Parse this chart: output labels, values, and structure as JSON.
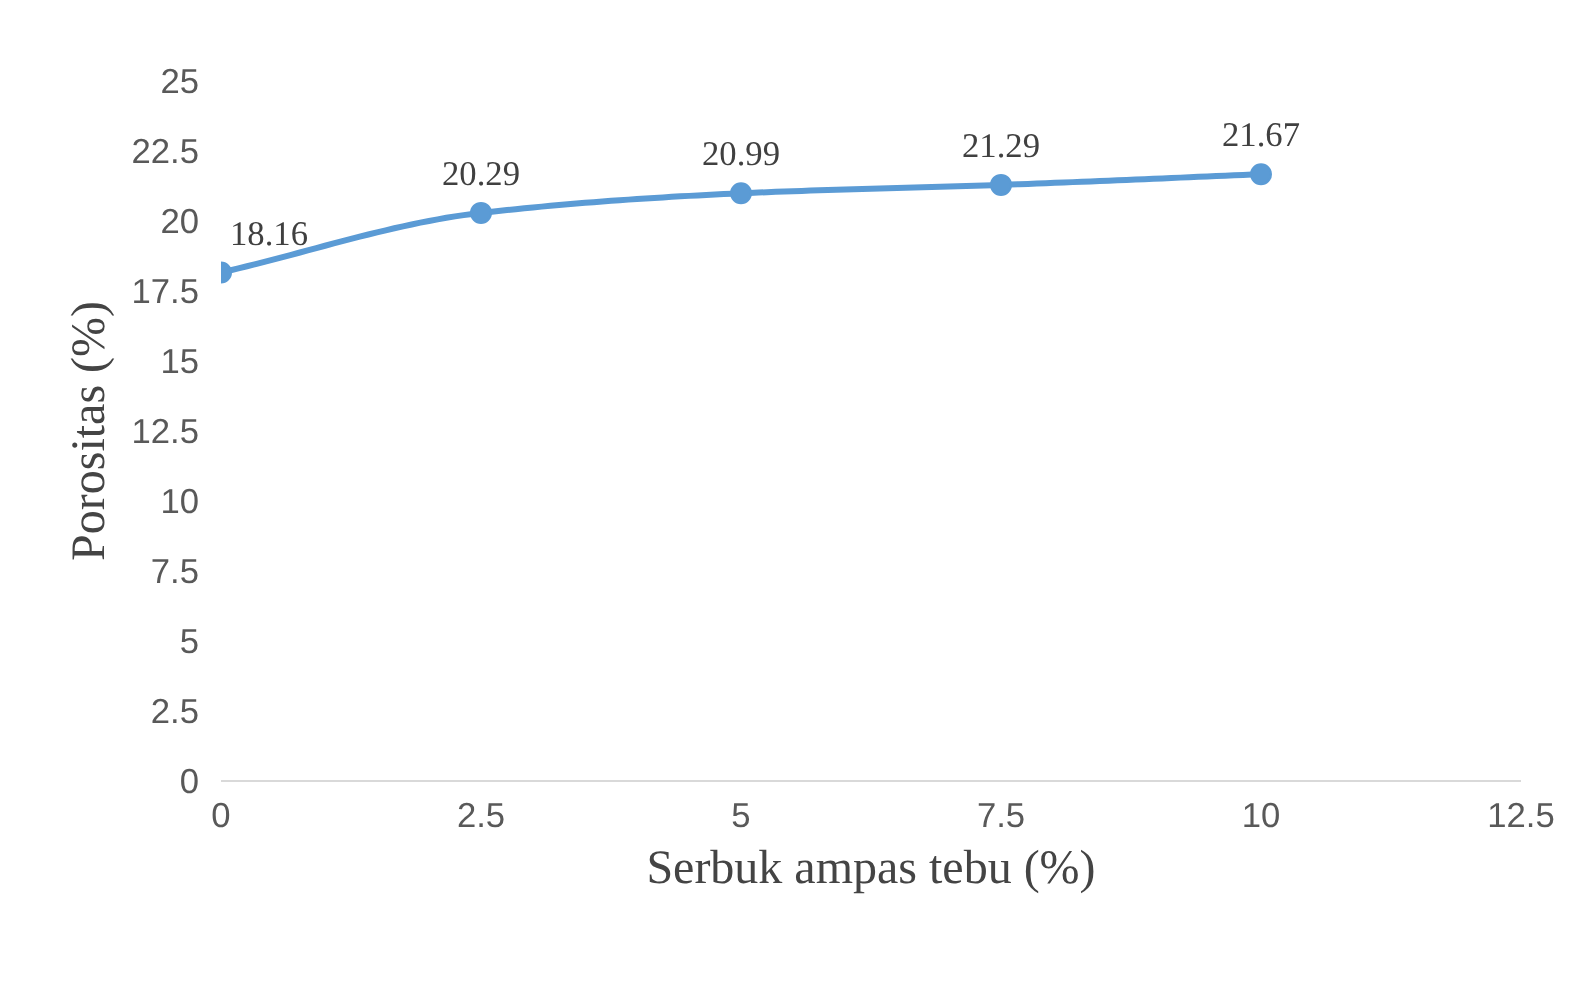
{
  "chart_data": {
    "type": "line",
    "xlabel": "Serbuk ampas tebu (%)",
    "ylabel": "Porositas (%)",
    "x": [
      0,
      2.5,
      5,
      7.5,
      10
    ],
    "series": [
      {
        "color": "#5b9bd5",
        "values": [
          18.16,
          20.29,
          20.99,
          21.29,
          21.67
        ]
      }
    ],
    "xlim": [
      0,
      12.5
    ],
    "xticks": [
      0,
      2.5,
      5,
      7.5,
      10,
      12.5
    ],
    "ylim": [
      0,
      25
    ],
    "yticks": [
      0,
      2.5,
      5,
      7.5,
      10,
      12.5,
      15,
      17.5,
      20,
      22.5,
      25
    ],
    "grid": false,
    "marker": "circle",
    "line_style": "solid",
    "data_labels": true
  }
}
